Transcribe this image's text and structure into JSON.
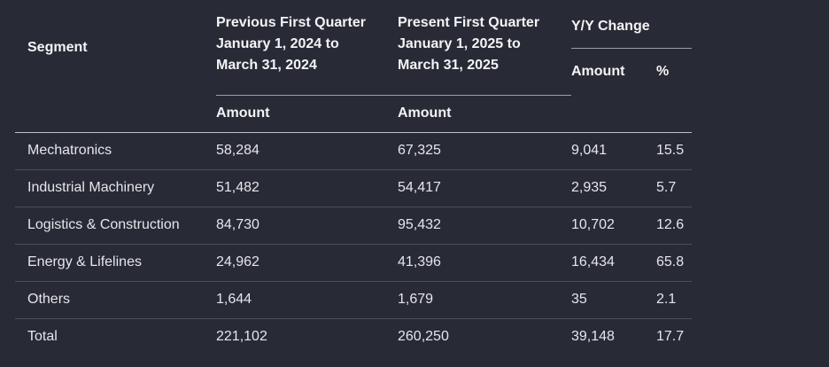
{
  "table": {
    "segment_header": "Segment",
    "previous": {
      "line1": "Previous First Quarter",
      "line2": "January 1, 2024 to",
      "line3": "March 31, 2024",
      "unit": "Amount"
    },
    "present": {
      "line1": "Present First Quarter",
      "line2": "January 1, 2025 to",
      "line3": "March 31, 2025",
      "unit": "Amount"
    },
    "change": {
      "header": "Y/Y Change",
      "amount": "Amount",
      "percent": "%"
    },
    "rows": [
      {
        "segment": "Mechatronics",
        "previous": "58,284",
        "present": "67,325",
        "change_amount": "9,041",
        "change_pct": "15.5"
      },
      {
        "segment": "Industrial Machinery",
        "previous": "51,482",
        "present": "54,417",
        "change_amount": "2,935",
        "change_pct": "5.7"
      },
      {
        "segment": "Logistics & Construction",
        "previous": "84,730",
        "present": "95,432",
        "change_amount": "10,702",
        "change_pct": "12.6"
      },
      {
        "segment": "Energy & Lifelines",
        "previous": "24,962",
        "present": "41,396",
        "change_amount": "16,434",
        "change_pct": "65.8"
      },
      {
        "segment": "Others",
        "previous": "1,644",
        "present": "1,679",
        "change_amount": "35",
        "change_pct": "2.1"
      },
      {
        "segment": "Total",
        "previous": "221,102",
        "present": "260,250",
        "change_amount": "39,148",
        "change_pct": "17.7"
      }
    ]
  }
}
